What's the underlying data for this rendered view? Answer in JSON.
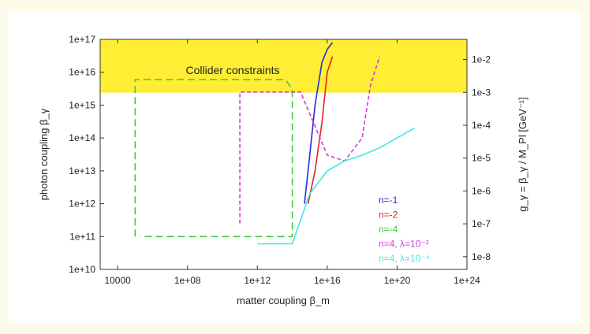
{
  "chart_data": {
    "type": "line",
    "xlabel": "matter coupling β_m",
    "ylabel": "photon coupling β_γ",
    "y2label": "g_γ = β_γ / M_Pl [GeV⁻¹]",
    "x_scale": "log",
    "y_scale": "log",
    "xlim": [
      1000,
      1e+24
    ],
    "ylim": [
      10000000000.0,
      1e+17
    ],
    "x_ticks": [
      10000,
      100000000.0,
      1000000000000.0,
      1e+16,
      1e+20,
      1e+24
    ],
    "x_tick_labels": [
      "10000",
      "1e+08",
      "1e+12",
      "1e+16",
      "1e+20",
      "1e+24"
    ],
    "y_ticks": [
      10000000000.0,
      100000000000.0,
      1000000000000.0,
      10000000000000.0,
      100000000000000.0,
      1000000000000000.0,
      1e+16,
      1e+17
    ],
    "y_tick_labels": [
      "1e+10",
      "1e+11",
      "1e+12",
      "1e+13",
      "1e+14",
      "1e+15",
      "1e+16",
      "1e+17"
    ],
    "y2_ticks": [
      1e-08,
      1e-07,
      1e-06,
      1e-05,
      0.0001,
      0.001,
      0.01
    ],
    "y2_tick_labels": [
      "1e-8",
      "1e-7",
      "1e-6",
      "1e-5",
      "1e-4",
      "1e-3",
      "1e-2"
    ],
    "y2_factor": 4.1e-19,
    "shaded_region": {
      "label": "Collider constraints",
      "color": "#ffee33",
      "y_from": 2400000000000000.0,
      "y_to": 1e+17
    },
    "legend_position": "bottom-right",
    "series": [
      {
        "name": "n=-1",
        "color": "#1f2fd8",
        "x": [
          500000000000000.0,
          1000000000000000.0,
          2000000000000000.0,
          5000000000000000.0,
          1e+16,
          2e+16
        ],
        "y": [
          1000000000000.0,
          30000000000000.0,
          1000000000000000.0,
          2e+16,
          5e+16,
          8e+16
        ]
      },
      {
        "name": "n=-2",
        "color": "#e82020",
        "x": [
          800000000000000.0,
          2000000000000000.0,
          5000000000000000.0,
          1e+16,
          2e+16
        ],
        "y": [
          1000000000000.0,
          10000000000000.0,
          300000000000000.0,
          1e+16,
          3e+16
        ]
      },
      {
        "name": "n=-4",
        "color": "#3fcc3f",
        "x": [
          100000.0,
          100000.0,
          40000000000000.0,
          100000000000000.0,
          100000000000000.0,
          200000.0,
          200000.0
        ],
        "y": [
          100000000000.0,
          6000000000000000.0,
          6000000000000000.0,
          3000000000000000.0,
          100000000000.0,
          100000000000.0,
          100000000000.0
        ]
      },
      {
        "name": "n=4, λ=10⁻²",
        "color": "#d23cd2",
        "x": [
          100000000000.0,
          100000000000.0,
          300000000000000.0,
          1e+16,
          1e+17,
          1e+18,
          3e+18,
          1e+19
        ],
        "y": [
          250000000000.0,
          2500000000000000.0,
          2500000000000000.0,
          30000000000000.0,
          20000000000000.0,
          100000000000000.0,
          4000000000000000.0,
          3e+16
        ]
      },
      {
        "name": "n=4, λ=10⁻⁴",
        "color": "#3ee8e8",
        "x": [
          1000000000000.0,
          3000000000000.0,
          100000000000000.0,
          1000000000000000.0,
          1e+16,
          1e+17,
          1e+18,
          1e+19,
          1e+20,
          1e+21
        ],
        "y": [
          60000000000.0,
          60000000000.0,
          60000000000.0,
          2000000000000.0,
          10000000000000.0,
          20000000000000.0,
          30000000000000.0,
          50000000000000.0,
          100000000000000.0,
          200000000000000.0
        ]
      }
    ],
    "legend_entries": [
      "n=-1",
      "n=-2",
      "n=-4",
      "n=4, λ=10⁻²",
      "n=4, λ=10⁻⁴"
    ]
  }
}
